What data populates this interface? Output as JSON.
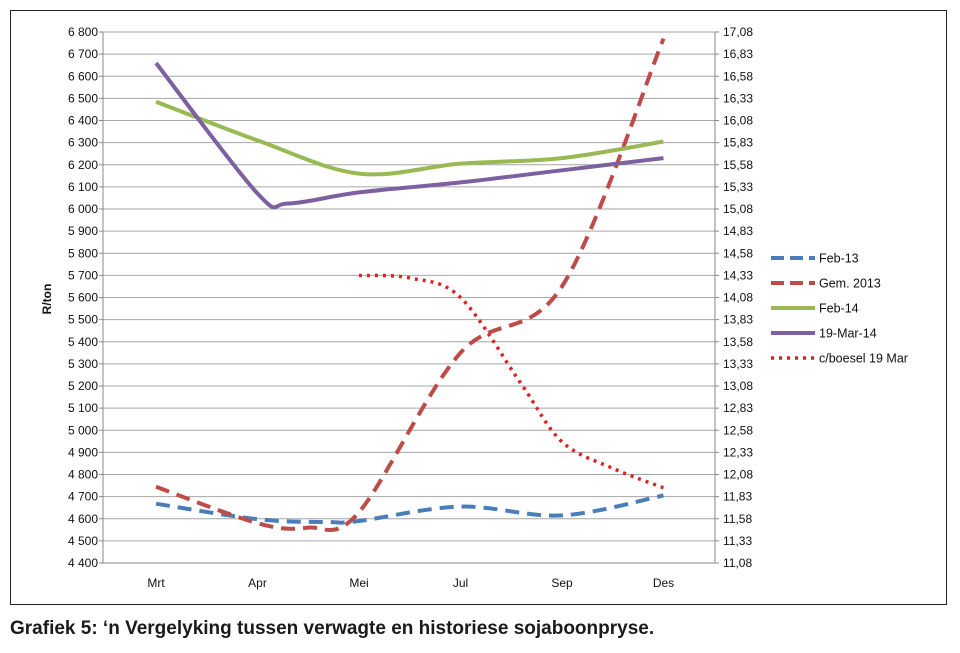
{
  "caption": "Grafiek 5: ‘n Vergelyking tussen verwagte en historiese sojaboonpryse.",
  "chart_data": {
    "type": "line",
    "categories": [
      "Mrt",
      "Apr",
      "Mei",
      "Jul",
      "Sep",
      "Des"
    ],
    "ylabel": "R/ton",
    "ylim": [
      4400,
      6800
    ],
    "y_ticks": [
      "4 400",
      "4 500",
      "4 600",
      "4 700",
      "4 800",
      "4 900",
      "5 000",
      "5 100",
      "5 200",
      "5 300",
      "5 400",
      "5 500",
      "5 600",
      "5 700",
      "5 800",
      "5 900",
      "6 000",
      "6 100",
      "6 200",
      "6 300",
      "6 400",
      "6 500",
      "6 600",
      "6 700",
      "6 800"
    ],
    "y2lim": [
      11.08,
      17.08
    ],
    "y2_ticks": [
      "11,08",
      "11,33",
      "11,58",
      "11,83",
      "12,08",
      "12,33",
      "12,58",
      "12,83",
      "13,08",
      "13,33",
      "13,58",
      "13,83",
      "14,08",
      "14,33",
      "14,58",
      "14,83",
      "15,08",
      "15,33",
      "15,58",
      "15,83",
      "16,08",
      "16,33",
      "16,58",
      "16,83",
      "17,08"
    ],
    "legend_position": "right",
    "series": [
      {
        "name": "Feb-13",
        "axis": "left",
        "color": "#4a7ebb",
        "style": "dashed",
        "points": [
          [
            0,
            4668
          ],
          [
            1.0,
            4598
          ],
          [
            1.7,
            4585
          ],
          [
            2.0,
            4590
          ],
          [
            3.0,
            4655
          ],
          [
            4.0,
            4615
          ],
          [
            5.0,
            4705
          ]
        ]
      },
      {
        "name": "Gem. 2013",
        "axis": "left",
        "color": "#be4b48",
        "style": "dashed",
        "points": [
          [
            0,
            4745
          ],
          [
            1.0,
            4580
          ],
          [
            1.5,
            4560
          ],
          [
            2.0,
            4630
          ],
          [
            3.0,
            5350
          ],
          [
            4.0,
            5650
          ],
          [
            5.0,
            6770
          ]
        ]
      },
      {
        "name": "Feb-14",
        "axis": "left",
        "color": "#98b954",
        "style": "solid",
        "points": [
          [
            0,
            6485
          ],
          [
            1.0,
            6310
          ],
          [
            2.0,
            6160
          ],
          [
            3.0,
            6205
          ],
          [
            4.0,
            6230
          ],
          [
            5.0,
            6305
          ]
        ]
      },
      {
        "name": "19-Mar-14",
        "axis": "left",
        "color": "#7d60a0",
        "style": "solid",
        "points": [
          [
            0,
            6660
          ],
          [
            1.0,
            6070
          ],
          [
            1.3,
            6025
          ],
          [
            2.0,
            6075
          ],
          [
            3.0,
            6120
          ],
          [
            4.0,
            6175
          ],
          [
            5.0,
            6230
          ]
        ]
      },
      {
        "name": "c/boesel 19 Mar",
        "axis": "right",
        "color": "#e02020",
        "style": "dotted",
        "points": [
          [
            2.0,
            14.33
          ],
          [
            2.5,
            14.3
          ],
          [
            3.0,
            14.08
          ],
          [
            3.6,
            13.1
          ],
          [
            4.0,
            12.45
          ],
          [
            4.5,
            12.15
          ],
          [
            5.0,
            11.93
          ]
        ]
      }
    ]
  }
}
